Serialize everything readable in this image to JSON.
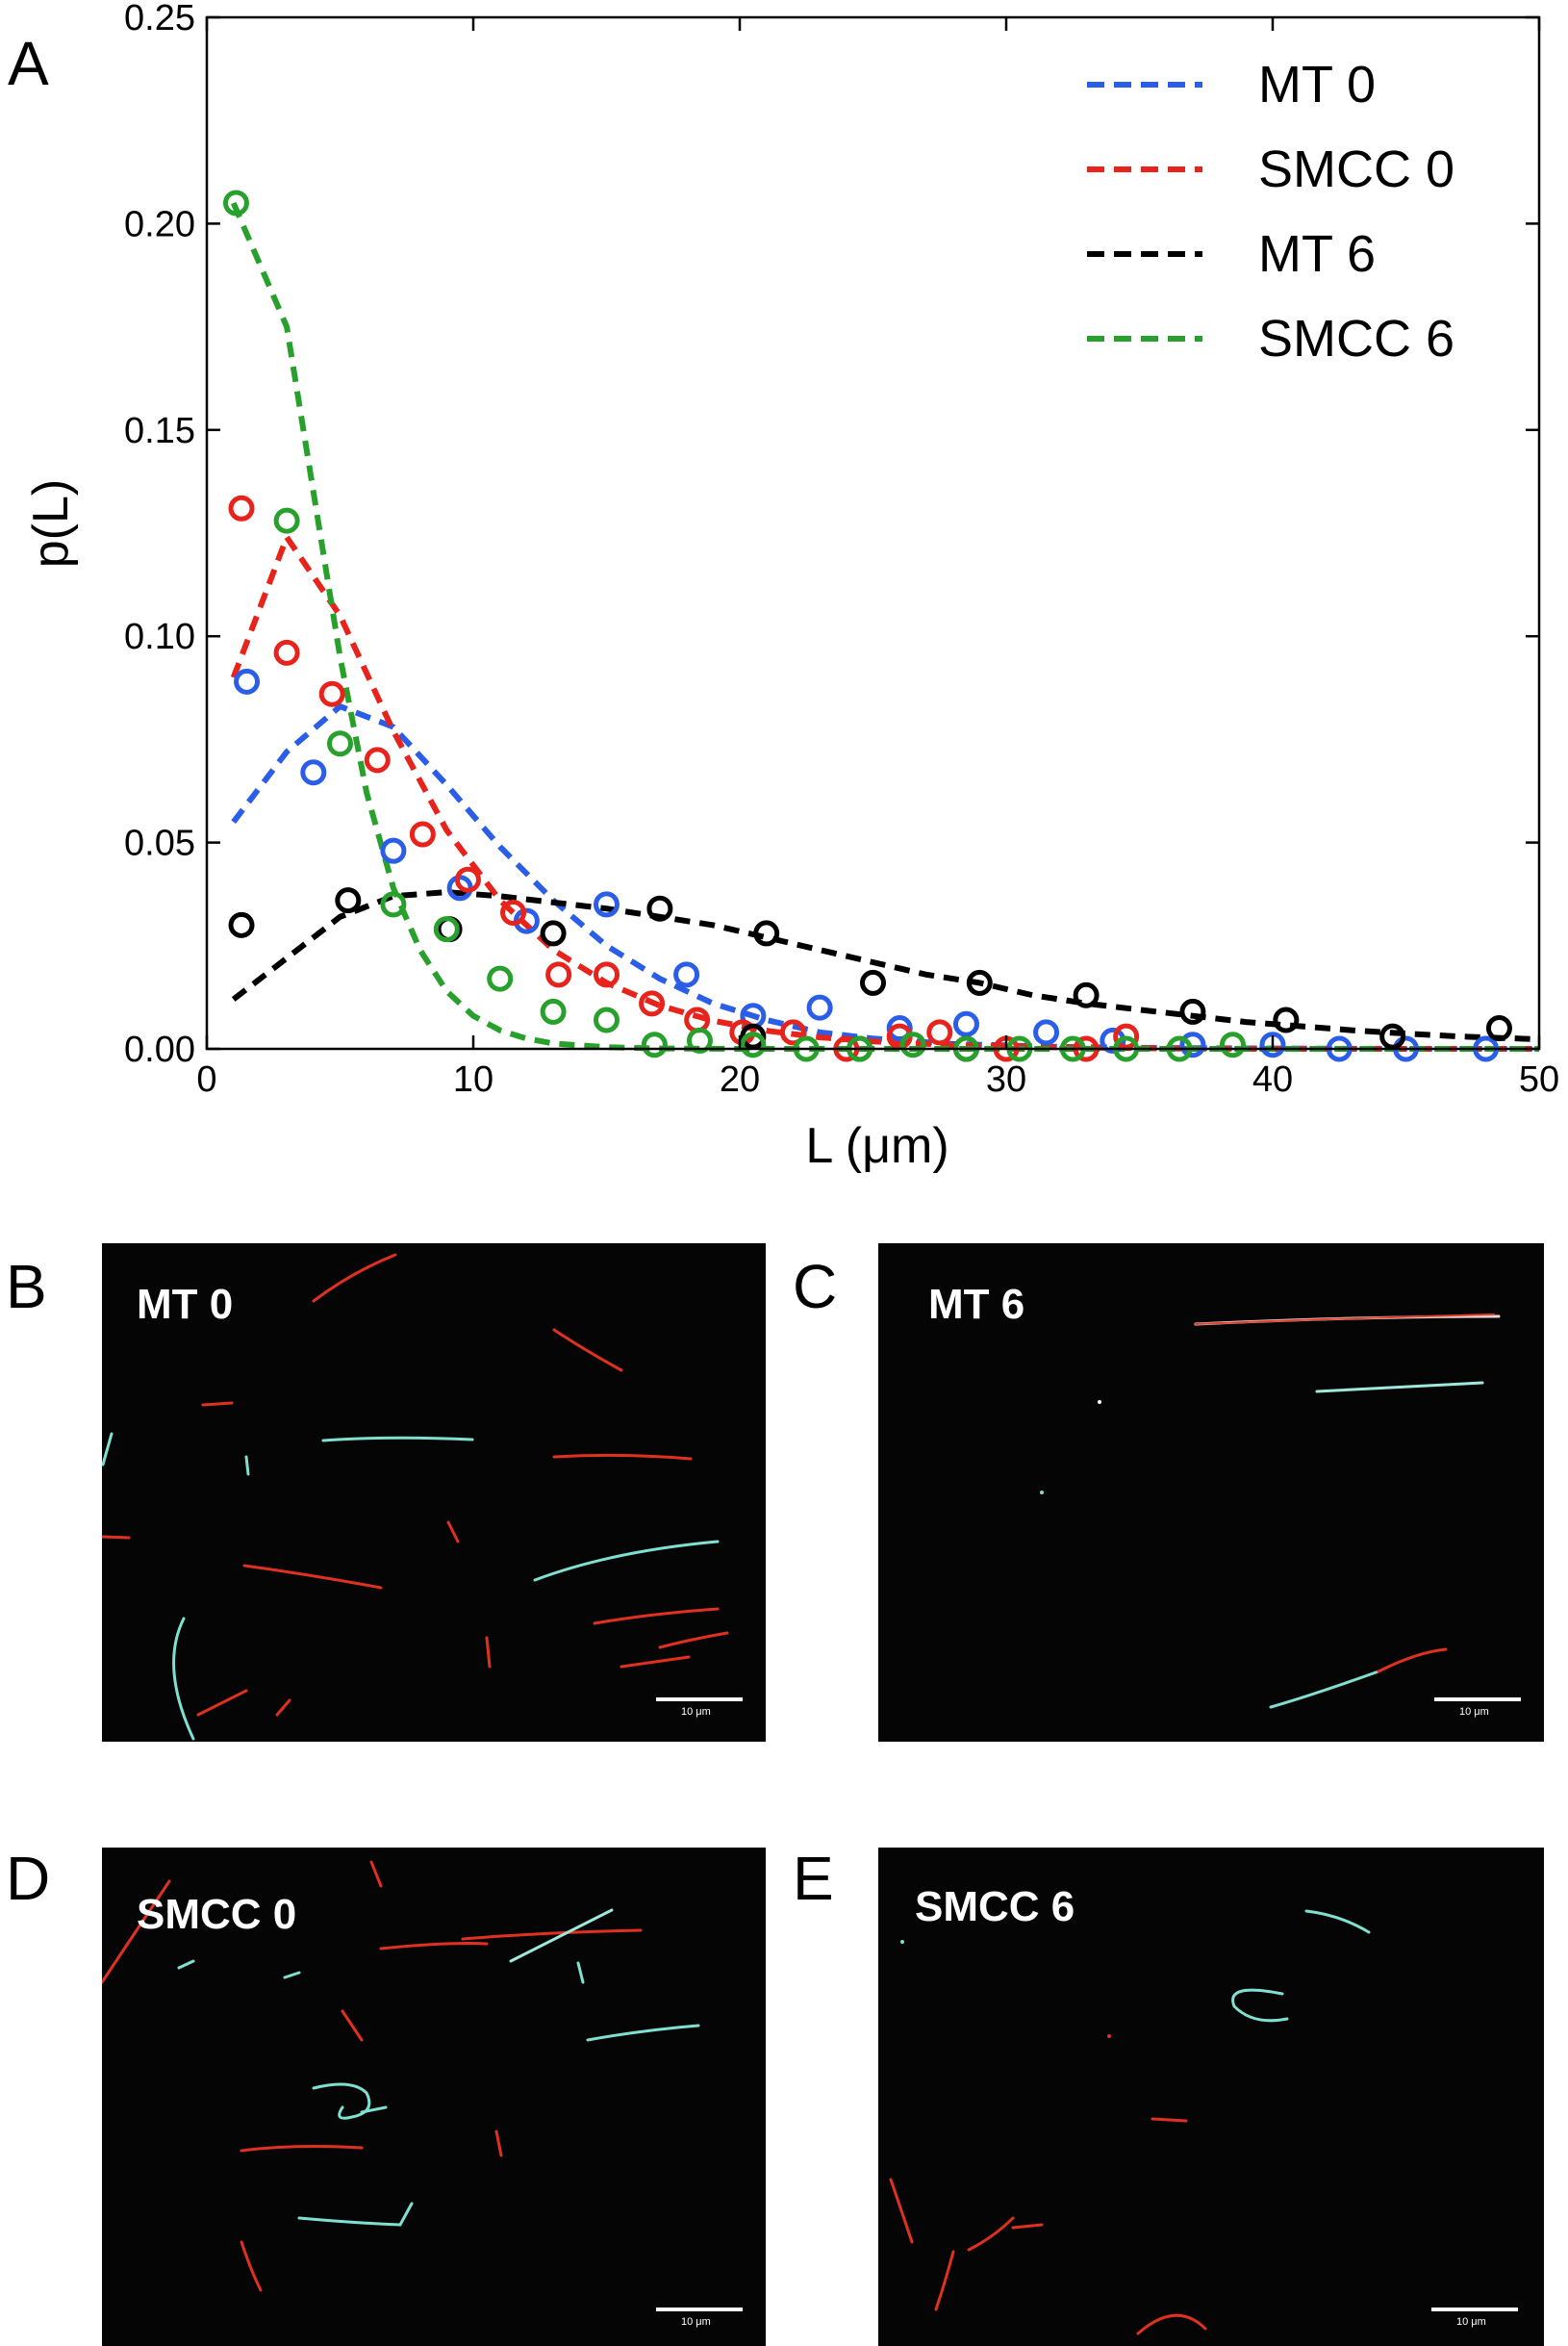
{
  "chart_data": {
    "type": "line",
    "panel_label": "A",
    "xlabel": "L (μm)",
    "ylabel": "p(L)",
    "xlim": [
      0,
      50
    ],
    "ylim": [
      0,
      0.25
    ],
    "x_ticks": [
      0,
      10,
      20,
      30,
      40,
      50
    ],
    "x_tick_labels": [
      "0",
      "10",
      "20",
      "30",
      "40",
      "50"
    ],
    "y_ticks": [
      0,
      0.05,
      0.1,
      0.15,
      0.2,
      0.25
    ],
    "y_tick_labels": [
      "0.00",
      "0.05",
      "0.10",
      "0.15",
      "0.20",
      "0.25"
    ],
    "legend_position": "top-right",
    "series": [
      {
        "name": "MT 0",
        "color": "#2b5ee8",
        "points": [
          [
            1.5,
            0.089
          ],
          [
            4,
            0.067
          ],
          [
            7,
            0.048
          ],
          [
            9.5,
            0.039
          ],
          [
            12,
            0.031
          ],
          [
            15,
            0.035
          ],
          [
            18,
            0.018
          ],
          [
            20.5,
            0.008
          ],
          [
            23,
            0.01
          ],
          [
            26,
            0.005
          ],
          [
            28.5,
            0.006
          ],
          [
            31.5,
            0.004
          ],
          [
            34,
            0.002
          ],
          [
            37,
            0.001
          ],
          [
            40,
            0.001
          ],
          [
            42.5,
            0.0
          ],
          [
            45,
            0.0
          ],
          [
            48,
            0.0
          ]
        ],
        "fit": [
          [
            1,
            0.055
          ],
          [
            3,
            0.072
          ],
          [
            5,
            0.083
          ],
          [
            7,
            0.078
          ],
          [
            9,
            0.064
          ],
          [
            11,
            0.049
          ],
          [
            13,
            0.036
          ],
          [
            15,
            0.025
          ],
          [
            17,
            0.017
          ],
          [
            19,
            0.011
          ],
          [
            21,
            0.007
          ],
          [
            23,
            0.004
          ],
          [
            25,
            0.0025
          ],
          [
            28,
            0.0012
          ],
          [
            32,
            0.0005
          ],
          [
            36,
            0.0002
          ],
          [
            40,
            0.0001
          ],
          [
            45,
            0.0
          ],
          [
            50,
            0.0
          ]
        ]
      },
      {
        "name": "SMCC 0",
        "color": "#e8231c",
        "points": [
          [
            1.3,
            0.131
          ],
          [
            3,
            0.096
          ],
          [
            4.7,
            0.086
          ],
          [
            6.4,
            0.07
          ],
          [
            8.1,
            0.052
          ],
          [
            9.8,
            0.041
          ],
          [
            11.5,
            0.033
          ],
          [
            13.2,
            0.018
          ],
          [
            15,
            0.018
          ],
          [
            16.7,
            0.011
          ],
          [
            18.4,
            0.007
          ],
          [
            20.1,
            0.004
          ],
          [
            22,
            0.004
          ],
          [
            24,
            0.0
          ],
          [
            26,
            0.003
          ],
          [
            27.5,
            0.004
          ],
          [
            30,
            0.0
          ],
          [
            33,
            0.0
          ],
          [
            34.5,
            0.003
          ]
        ],
        "fit": [
          [
            1,
            0.09
          ],
          [
            3,
            0.124
          ],
          [
            5,
            0.105
          ],
          [
            7,
            0.077
          ],
          [
            9,
            0.053
          ],
          [
            11,
            0.036
          ],
          [
            13,
            0.024
          ],
          [
            15,
            0.016
          ],
          [
            17,
            0.0105
          ],
          [
            19,
            0.0068
          ],
          [
            21,
            0.0044
          ],
          [
            23,
            0.0028
          ],
          [
            25,
            0.0018
          ],
          [
            28,
            0.0009
          ],
          [
            32,
            0.0004
          ],
          [
            36,
            0.0001
          ],
          [
            40,
            0.0
          ],
          [
            50,
            0.0
          ]
        ]
      },
      {
        "name": "MT 6",
        "color": "#000000",
        "points": [
          [
            1.3,
            0.03
          ],
          [
            5.3,
            0.036
          ],
          [
            9.1,
            0.029
          ],
          [
            13,
            0.028
          ],
          [
            17,
            0.034
          ],
          [
            21,
            0.028
          ],
          [
            25,
            0.016
          ],
          [
            29,
            0.016
          ],
          [
            33,
            0.013
          ],
          [
            37,
            0.009
          ],
          [
            40.5,
            0.007
          ],
          [
            44.5,
            0.003
          ],
          [
            48.5,
            0.005
          ],
          [
            20.5,
            0.003
          ],
          [
            24.5,
            0.0
          ],
          [
            28.5,
            0.0
          ]
        ],
        "fit": [
          [
            1,
            0.012
          ],
          [
            3,
            0.022
          ],
          [
            5,
            0.032
          ],
          [
            7,
            0.037
          ],
          [
            9,
            0.038
          ],
          [
            11,
            0.037
          ],
          [
            13,
            0.0355
          ],
          [
            15,
            0.034
          ],
          [
            17,
            0.032
          ],
          [
            19,
            0.03
          ],
          [
            21,
            0.027
          ],
          [
            23,
            0.024
          ],
          [
            25,
            0.021
          ],
          [
            27,
            0.018
          ],
          [
            29,
            0.016
          ],
          [
            31,
            0.013
          ],
          [
            33,
            0.011
          ],
          [
            35,
            0.0095
          ],
          [
            37,
            0.008
          ],
          [
            39,
            0.0065
          ],
          [
            41,
            0.0055
          ],
          [
            43,
            0.0045
          ],
          [
            45,
            0.0037
          ],
          [
            47,
            0.003
          ],
          [
            50,
            0.0023
          ]
        ]
      },
      {
        "name": "SMCC 6",
        "color": "#28a02c",
        "points": [
          [
            1.1,
            0.205
          ],
          [
            3,
            0.128
          ],
          [
            5,
            0.074
          ],
          [
            7,
            0.035
          ],
          [
            9,
            0.029
          ],
          [
            11,
            0.017
          ],
          [
            13,
            0.009
          ],
          [
            15,
            0.007
          ],
          [
            16.8,
            0.001
          ],
          [
            18.5,
            0.002
          ],
          [
            20.5,
            0.001
          ],
          [
            22.5,
            0.0
          ],
          [
            24.5,
            0.0
          ],
          [
            26.5,
            0.001
          ],
          [
            28.5,
            0.0
          ],
          [
            30.5,
            0.0
          ],
          [
            32.5,
            0.0
          ],
          [
            34.5,
            0.0
          ],
          [
            36.5,
            0.0
          ],
          [
            38.5,
            0.001
          ]
        ],
        "fit": [
          [
            1,
            0.205
          ],
          [
            2,
            0.19
          ],
          [
            3,
            0.175
          ],
          [
            4,
            0.135
          ],
          [
            5,
            0.095
          ],
          [
            6,
            0.062
          ],
          [
            7,
            0.039
          ],
          [
            8,
            0.024
          ],
          [
            9,
            0.014
          ],
          [
            10,
            0.008
          ],
          [
            11,
            0.0045
          ],
          [
            12,
            0.0025
          ],
          [
            13,
            0.0013
          ],
          [
            15,
            0.0004
          ],
          [
            17,
            0.0001
          ],
          [
            20,
            0.0
          ],
          [
            30,
            0.0
          ],
          [
            40,
            0.0
          ],
          [
            50,
            0.0
          ]
        ]
      }
    ]
  },
  "panels": [
    {
      "letter": "B",
      "label": "MT 0",
      "scale_bar": "10 μm"
    },
    {
      "letter": "C",
      "label": "MT 6",
      "scale_bar": "10 μm"
    },
    {
      "letter": "D",
      "label": "SMCC 0",
      "scale_bar": "10 μm"
    },
    {
      "letter": "E",
      "label": "SMCC 6",
      "scale_bar": "10 μm"
    }
  ]
}
